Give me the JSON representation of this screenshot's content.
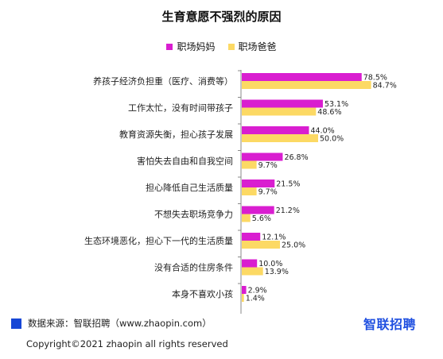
{
  "title": "生育意愿不强烈的原因",
  "legend": [
    {
      "label": "职场妈妈",
      "color": "#d91ed0"
    },
    {
      "label": "职场爸爸",
      "color": "#fcd964"
    }
  ],
  "chart_data": {
    "type": "bar",
    "orientation": "horizontal",
    "categories": [
      "养孩子经济负担重（医疗、消费等）",
      "工作太忙，没有时间带孩子",
      "教育资源失衡，担心孩子发展",
      "害怕失去自由和自我空间",
      "担心降低自己生活质量",
      "不想失去职场竞争力",
      "生态环境恶化，担心下一代的生活质量",
      "没有合适的住房条件",
      "本身不喜欢小孩"
    ],
    "series": [
      {
        "name": "职场妈妈",
        "color": "#d91ed0",
        "values": [
          78.5,
          53.1,
          44.0,
          26.8,
          21.5,
          21.2,
          12.1,
          10.0,
          2.9
        ],
        "labels": [
          "78.5%",
          "53.1%",
          "44.0%",
          "26.8%",
          "21.5%",
          "21.2%",
          "12.1%",
          "10.0%",
          "2.9%"
        ]
      },
      {
        "name": "职场爸爸",
        "color": "#fcd964",
        "values": [
          84.7,
          48.6,
          50.0,
          9.7,
          9.7,
          5.6,
          25.0,
          13.9,
          1.4
        ],
        "labels": [
          "84.7%",
          "48.6%",
          "50.0%",
          "9.7%",
          "9.7%",
          "5.6%",
          "25.0%",
          "13.9%",
          "1.4%"
        ]
      }
    ],
    "xlim": [
      0,
      100
    ],
    "grid": false,
    "legend_position": "top-center"
  },
  "footer": {
    "source": "数据来源：智联招聘（www.zhaopin.com）",
    "logo": "智联招聘",
    "copyright": "Copyright©2021 zhaopin all rights reserved"
  }
}
